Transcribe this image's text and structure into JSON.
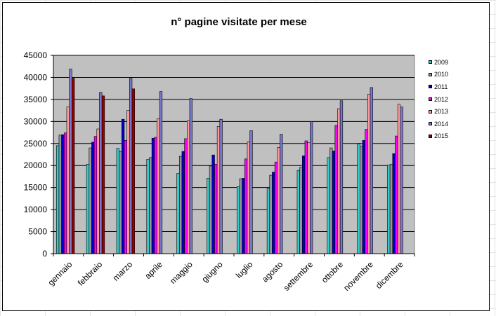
{
  "chart_data": {
    "type": "bar",
    "title": "n° pagine visitate per mese",
    "xlabel": "",
    "ylabel": "",
    "ylim": [
      0,
      45000
    ],
    "yticks": [
      "0",
      "5000",
      "10000",
      "15000",
      "20000",
      "25000",
      "30000",
      "35000",
      "40000",
      "45000"
    ],
    "grid": true,
    "legend_position": "right",
    "categories": [
      "gennaio",
      "febbraio",
      "marzo",
      "aprile",
      "maggio",
      "giugno",
      "luglio",
      "agosto",
      "settembre",
      "ottobre",
      "novembre",
      "dicembre"
    ],
    "series": [
      {
        "name": "2009",
        "color": "#33cccc",
        "values": [
          24500,
          20300,
          23900,
          21400,
          18200,
          17100,
          15200,
          14800,
          18900,
          21800,
          24900,
          20100
        ]
      },
      {
        "name": "2010",
        "color": "#969696",
        "values": [
          26900,
          24000,
          23200,
          21800,
          22100,
          19900,
          17000,
          17800,
          19600,
          24000,
          24400,
          20300
        ]
      },
      {
        "name": "2011",
        "color": "#0000cc",
        "values": [
          27000,
          25300,
          30500,
          26200,
          23200,
          22400,
          17100,
          18500,
          22200,
          23300,
          25700,
          22700
        ]
      },
      {
        "name": "2012",
        "color": "#ff00ff",
        "values": [
          27400,
          26600,
          25700,
          26400,
          26100,
          20300,
          21500,
          20800,
          25600,
          29100,
          28200,
          26700
        ]
      },
      {
        "name": "2013",
        "color": "#ff9999",
        "values": [
          33300,
          28300,
          32500,
          30600,
          30200,
          28900,
          25400,
          24100,
          25200,
          32900,
          36200,
          33900
        ]
      },
      {
        "name": "2014",
        "color": "#7777cc",
        "values": [
          41900,
          36600,
          39800,
          36800,
          35200,
          30500,
          27900,
          27100,
          30000,
          34700,
          37700,
          33300
        ]
      },
      {
        "name": "2015",
        "color": "#990000",
        "values": [
          39800,
          35800,
          37400,
          null,
          null,
          null,
          null,
          null,
          null,
          null,
          null,
          null
        ]
      }
    ]
  }
}
